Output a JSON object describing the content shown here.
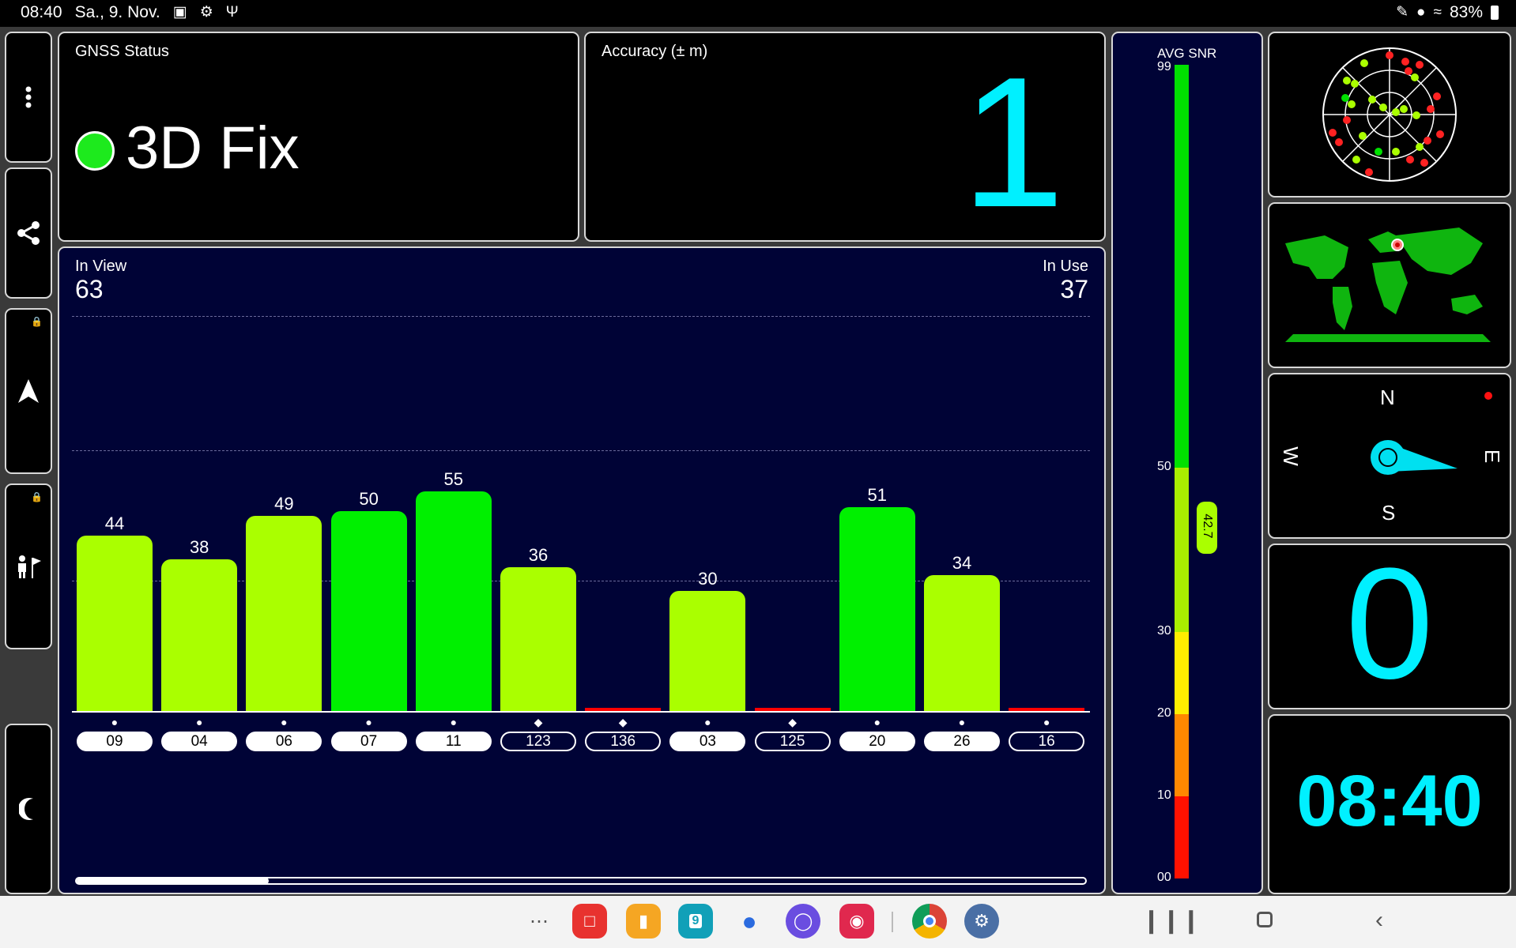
{
  "status_bar": {
    "time": "08:40",
    "date": "Sa., 9. Nov.",
    "battery": "83%"
  },
  "gnss_status": {
    "title": "GNSS Status",
    "value": "3D Fix",
    "indicator_color": "#1dea1d"
  },
  "accuracy": {
    "title": "Accuracy (± m)",
    "value": "1",
    "color": "#00f0ff"
  },
  "satellites": {
    "in_view_label": "In View",
    "in_view": "63",
    "in_use_label": "In Use",
    "in_use": "37",
    "scroll_position": 0.19
  },
  "chart_data": {
    "type": "bar",
    "categories": [
      "09",
      "04",
      "06",
      "07",
      "11",
      "123",
      "136",
      "03",
      "125",
      "20",
      "26",
      "16"
    ],
    "values": [
      44,
      38,
      49,
      50,
      55,
      36,
      0,
      30,
      0,
      51,
      34,
      0
    ],
    "markers": [
      "circle",
      "circle",
      "circle",
      "circle",
      "circle",
      "diamond",
      "diamond",
      "circle",
      "diamond",
      "circle",
      "circle",
      "circle"
    ],
    "label_style": [
      "filled",
      "filled",
      "filled",
      "filled",
      "filled",
      "outline",
      "outline",
      "filled",
      "outline",
      "filled",
      "filled",
      "outline"
    ],
    "value_labels": [
      "44",
      "38",
      "49",
      "50",
      "55",
      "36",
      "",
      "30",
      "",
      "51",
      "34",
      ""
    ],
    "ylim": [
      0,
      99
    ],
    "grid": true,
    "colors": {
      "strong": "#00f000",
      "medium": "#aaff00",
      "none": "#ff0000"
    }
  },
  "snr_scale": {
    "title": "AVG SNR",
    "max_label": "99",
    "ticks": [
      "50",
      "30",
      "20",
      "10",
      "00"
    ],
    "average": "42.7",
    "average_value": 42.7
  },
  "compass": {
    "n": "N",
    "e": "E",
    "s": "S",
    "w": "W"
  },
  "speed": {
    "value": "0"
  },
  "clock": {
    "value": "08:40"
  },
  "taskbar": {
    "calendar_day": "9"
  }
}
